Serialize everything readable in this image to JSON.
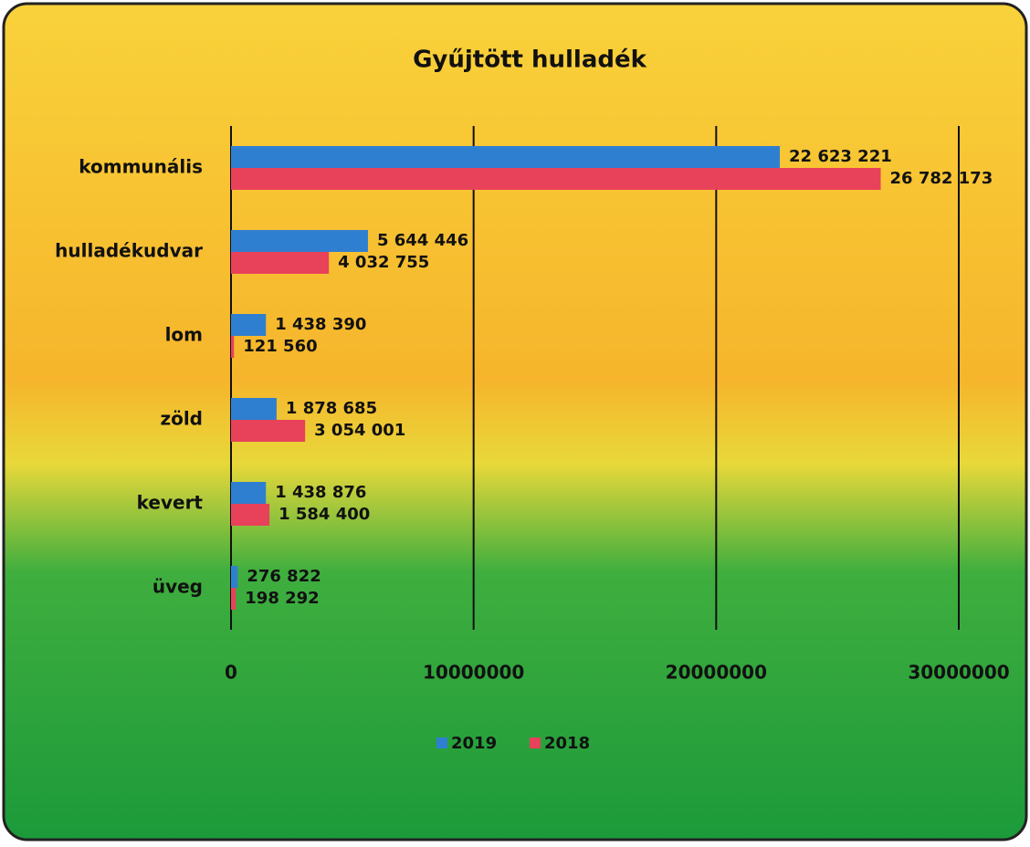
{
  "chart_data": {
    "type": "bar",
    "orientation": "horizontal",
    "title": "Gyűjtött hulladék",
    "categories": [
      "kommunális",
      "hulladékudvar",
      "lom",
      "zöld",
      "kevert",
      "üveg"
    ],
    "series": [
      {
        "name": "2019",
        "color": "#2f7fd0",
        "values": [
          22623221,
          5644446,
          1438390,
          1878685,
          1438876,
          276822
        ],
        "value_labels": [
          "22 623 221",
          "5 644 446",
          "1 438 390",
          "1 878 685",
          "1 438 876",
          "276 822"
        ]
      },
      {
        "name": "2018",
        "color": "#e8415a",
        "values": [
          26782173,
          4032755,
          121560,
          3054001,
          1584400,
          198292
        ],
        "value_labels": [
          "26 782 173",
          "4 032 755",
          "121 560",
          "3 054 001",
          "1 584 400",
          "198 292"
        ]
      }
    ],
    "xlim": [
      0,
      30000000
    ],
    "xticks": [
      0,
      10000000,
      20000000,
      30000000
    ],
    "grid": true,
    "legend": "bottom"
  }
}
